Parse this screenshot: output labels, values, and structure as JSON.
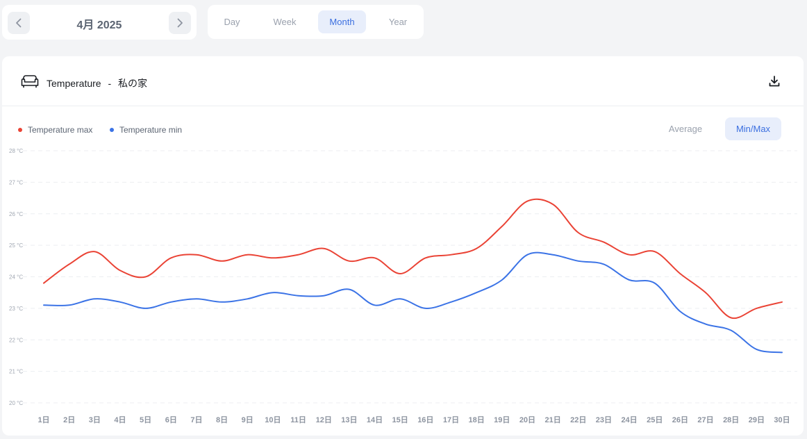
{
  "date_nav": {
    "label": "4月 2025"
  },
  "range_tabs": [
    {
      "label": "Day",
      "active": false
    },
    {
      "label": "Week",
      "active": false
    },
    {
      "label": "Month",
      "active": true
    },
    {
      "label": "Year",
      "active": false
    }
  ],
  "card": {
    "metric": "Temperature",
    "separator": "-",
    "location": "私の家",
    "icon": "sofa-icon"
  },
  "view_modes": [
    {
      "label": "Average",
      "active": false
    },
    {
      "label": "Min/Max",
      "active": true
    }
  ],
  "colors": {
    "max": "#ea4335",
    "min": "#3b73e6",
    "accent": "#3b6fe0"
  },
  "chart_data": {
    "type": "line",
    "x": [
      "1日",
      "2日",
      "3日",
      "4日",
      "5日",
      "6日",
      "7日",
      "8日",
      "9日",
      "10日",
      "11日",
      "12日",
      "13日",
      "14日",
      "15日",
      "16日",
      "17日",
      "18日",
      "19日",
      "20日",
      "21日",
      "22日",
      "23日",
      "24日",
      "25日",
      "26日",
      "27日",
      "28日",
      "29日",
      "30日"
    ],
    "series": [
      {
        "name": "Temperature max",
        "values": [
          23.8,
          24.4,
          24.8,
          24.2,
          24.0,
          24.6,
          24.7,
          24.5,
          24.7,
          24.6,
          24.7,
          24.9,
          24.5,
          24.6,
          24.1,
          24.6,
          24.7,
          24.9,
          25.6,
          26.4,
          26.3,
          25.4,
          25.1,
          24.7,
          24.8,
          24.1,
          23.5,
          22.7,
          23.0,
          23.2
        ]
      },
      {
        "name": "Temperature min",
        "values": [
          23.1,
          23.1,
          23.3,
          23.2,
          23.0,
          23.2,
          23.3,
          23.2,
          23.3,
          23.5,
          23.4,
          23.4,
          23.6,
          23.1,
          23.3,
          23.0,
          23.2,
          23.5,
          23.9,
          24.7,
          24.7,
          24.5,
          24.4,
          23.9,
          23.8,
          22.9,
          22.5,
          22.3,
          21.7,
          21.6
        ]
      }
    ],
    "y_ticks": [
      "20 °C",
      "21 °C",
      "22 °C",
      "23 °C",
      "24 °C",
      "25 °C",
      "26 °C",
      "27 °C",
      "28 °C"
    ],
    "ylim": [
      20,
      28
    ],
    "grid": true,
    "legend": "top-left"
  }
}
